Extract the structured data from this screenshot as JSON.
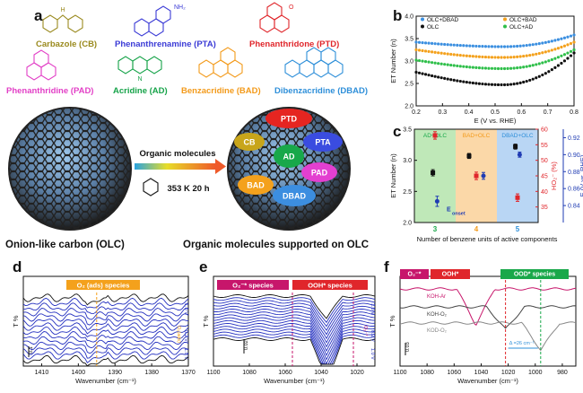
{
  "panels": {
    "a": "a",
    "b": "b",
    "c": "c",
    "d": "d",
    "e": "e",
    "f": "f"
  },
  "molecules": [
    {
      "name": "Carbazole (CB)",
      "color": "#9a8a1e"
    },
    {
      "name": "Phenanthrenamine (PTA)",
      "color": "#3b3bd6"
    },
    {
      "name": "Phenanthridone (PTD)",
      "color": "#e0262b"
    },
    {
      "name": "Phenanthridine (PAD)",
      "color": "#e23fc6"
    },
    {
      "name": "Acridine (AD)",
      "color": "#16a349"
    },
    {
      "name": "Benzacridine (BAD)",
      "color": "#f39a1a"
    },
    {
      "name": "Dibenzacridine (DBAD)",
      "color": "#2e8fd9"
    }
  ],
  "structure_labels": {
    "nh2": "NH₂",
    "nh": "N",
    "o": "O",
    "h": "H",
    "n": "N"
  },
  "panel_a": {
    "arrow_label_top": "Organic molecules",
    "arrow_label_bottom": "353 K 20 h",
    "left_caption": "Onion-like carbon (OLC)",
    "right_caption": "Organic molecules supported on OLC",
    "blobs": [
      {
        "label": "PTD",
        "color": "#e52521"
      },
      {
        "label": "CB",
        "color": "#c8a51a"
      },
      {
        "label": "PTA",
        "color": "#3a4ce0"
      },
      {
        "label": "AD",
        "color": "#18a84a"
      },
      {
        "label": "PAD",
        "color": "#e33fd0"
      },
      {
        "label": "BAD",
        "color": "#f4a11c"
      },
      {
        "label": "DBAD",
        "color": "#3c8ee0"
      }
    ]
  },
  "chart_data": [
    {
      "panel": "b",
      "type": "scatter",
      "xlabel": "E (V vs. RHE)",
      "ylabel": "ET Number (n)",
      "xlim": [
        0.2,
        0.8
      ],
      "ylim": [
        2.0,
        4.0
      ],
      "xticks": [
        "0.2",
        "0.3",
        "0.4",
        "0.5",
        "0.6",
        "0.7",
        "0.8"
      ],
      "yticks": [
        "2.0",
        "2.5",
        "3.0",
        "3.5",
        "4.0"
      ],
      "legend_position": "top",
      "series": [
        {
          "name": "OLC+DBAD",
          "color": "#3b8fe0",
          "y0": 3.42,
          "ymin": 3.32,
          "yend": 3.58
        },
        {
          "name": "OLC+BAD",
          "color": "#f4a11c",
          "y0": 3.25,
          "ymin": 3.08,
          "yend": 3.42
        },
        {
          "name": "OLC+AD",
          "color": "#2fbf4a",
          "y0": 3.02,
          "ymin": 2.83,
          "yend": 3.25
        },
        {
          "name": "OLC",
          "color": "#111111",
          "y0": 2.75,
          "ymin": 2.47,
          "yend": 3.18
        }
      ]
    },
    {
      "panel": "c",
      "type": "scatter",
      "xlabel": "Number of benzene units of active components",
      "ylabel": "ET Number (n)",
      "ylabel_right1": "HO₂⁻ (%)",
      "ylabel_right2": "E (V vs. RHE)",
      "categories": [
        "3",
        "4",
        "5"
      ],
      "ylim": [
        2.0,
        3.5
      ],
      "ylim_ho2": [
        30,
        60
      ],
      "ylim_e": [
        0.82,
        0.93
      ],
      "yticks": [
        "2.0",
        "2.5",
        "3.0",
        "3.5"
      ],
      "ho2_ticks": [
        "35",
        "40",
        "45",
        "50",
        "55",
        "60"
      ],
      "e_ticks": [
        "0.84",
        "0.86",
        "0.88",
        "0.90",
        "0.92"
      ],
      "bands": [
        {
          "label": "AD+OLC",
          "color": "#bfe8b8",
          "label_color": "#19a84a"
        },
        {
          "label": "BAD+OLC",
          "color": "#fbd8a8",
          "label_color": "#f39a1a"
        },
        {
          "label": "DBAD+OLC",
          "color": "#b9d6f4",
          "label_color": "#2e8fd9"
        }
      ],
      "series": [
        {
          "name": "ET Number",
          "color": "#111111",
          "values": [
            2.8,
            3.07,
            3.22
          ],
          "err": [
            0.05,
            0.04,
            0.04
          ]
        },
        {
          "name": "HO2-",
          "color": "#e0262b",
          "values": [
            58,
            45,
            38
          ],
          "err": [
            1.2,
            1.2,
            1.2
          ]
        },
        {
          "name": "E onset",
          "color": "#1f3bb3",
          "values": [
            0.845,
            0.875,
            0.9
          ],
          "err": [
            0.006,
            0.004,
            0.003
          ]
        }
      ],
      "annotation_onset": "E",
      "annotation_onset_sub": "onset"
    },
    {
      "panel": "d",
      "type": "line",
      "xlabel": "Wavenumber (cm⁻¹)",
      "ylabel": "T %",
      "xlim": [
        1415,
        1370
      ],
      "xticks": [
        "1410",
        "1400",
        "1390",
        "1380",
        "1370"
      ],
      "header": "O₂ (ads) species",
      "header_color": "#f4a11c",
      "scale": "0.1",
      "vlabel_top": "1.0 V",
      "vlabel_mid": "0.2 V",
      "vlabel_bottom": "1.0 V",
      "vlabel_o2": "O₂(ads)",
      "marker": 1395
    },
    {
      "panel": "e",
      "type": "line",
      "xlabel": "Wavenumber (cm⁻¹)",
      "ylabel": "T %",
      "xlim": [
        1100,
        1010
      ],
      "xticks": [
        "1100",
        "1080",
        "1060",
        "1040",
        "1020"
      ],
      "header1": "O₂⁻* species",
      "header1_color": "#c7166b",
      "header2": "OOH* species",
      "header2_color": "#e0262b",
      "scale": "0.02",
      "vlabel_top": "1.0 V",
      "vlabel_mid": "0.2 V",
      "vlabel_bottom": "1.0 V",
      "vlabel_o2": "O₂⁻*",
      "markers": [
        1056,
        1022
      ]
    },
    {
      "panel": "f",
      "type": "line",
      "xlabel": "Wavenumber (cm⁻¹)",
      "ylabel": "T %",
      "xlim": [
        1100,
        970
      ],
      "xticks": [
        "1100",
        "1080",
        "1060",
        "1040",
        "1020",
        "1000",
        "980"
      ],
      "header1": "O₂⁻*",
      "header1_color": "#c7166b",
      "header2": "OOH*",
      "header2_color": "#e0262b",
      "header3": "OOD* species",
      "header3_color": "#19a84a",
      "scale": "0.03",
      "series": [
        {
          "name": "KOH-Ar",
          "color": "#c7166b"
        },
        {
          "name": "KOH-O₂",
          "color": "#444444"
        },
        {
          "name": "KOD-O₂",
          "color": "#888888"
        }
      ],
      "shift_label": "Δ =26 cm⁻¹"
    }
  ]
}
